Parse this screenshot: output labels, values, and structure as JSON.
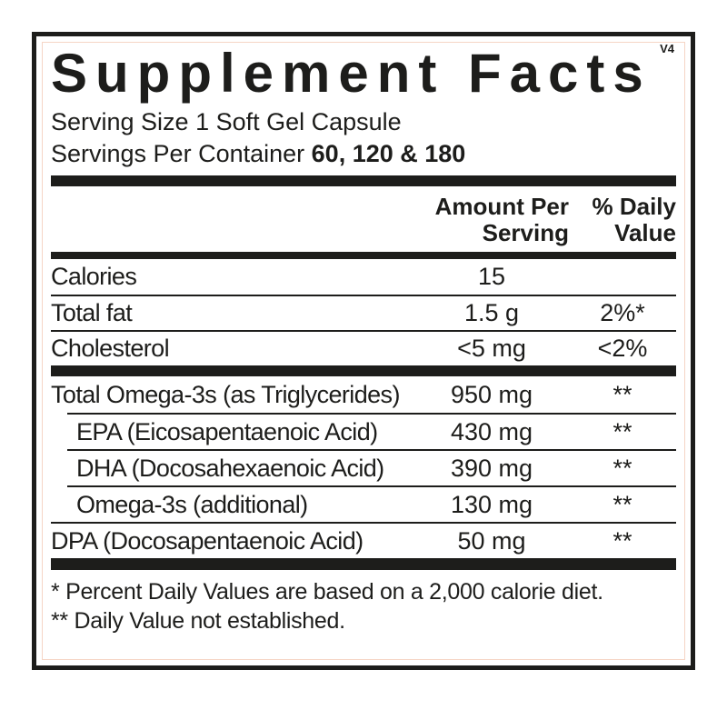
{
  "title": "Supplement Facts",
  "version_tag": "V4",
  "serving": {
    "size_line": "Serving Size 1 Soft Gel Capsule",
    "per_container_label": "Servings Per Container",
    "per_container_value": "60, 120 & 180"
  },
  "columns": {
    "amount_header": "Amount Per Serving",
    "dv_header": "% Daily Value"
  },
  "rows": [
    {
      "name": "Calories",
      "amount": "15",
      "dv": ""
    },
    {
      "name": "Total fat",
      "amount": "1.5 g",
      "dv": "2%*"
    },
    {
      "name": "Cholesterol",
      "amount": "<5 mg",
      "dv": "<2%"
    },
    {
      "name": "Total Omega-3s (as Triglycerides)",
      "amount": "950 mg",
      "dv": "**"
    },
    {
      "name": "EPA (Eicosapentaenoic Acid)",
      "amount": "430 mg",
      "dv": "**"
    },
    {
      "name": "DHA (Docosahexaenoic Acid)",
      "amount": "390 mg",
      "dv": "**"
    },
    {
      "name": "Omega-3s (additional)",
      "amount": "130 mg",
      "dv": "**"
    },
    {
      "name": "DPA (Docosapentaenoic Acid)",
      "amount": "50 mg",
      "dv": "**"
    }
  ],
  "footnotes": [
    "* Percent Daily Values are based on a 2,000 calorie diet.",
    "** Daily Value not established."
  ],
  "colors": {
    "ink": "#1d1d1b",
    "accent_line": "#f6d5c5",
    "background": "#ffffff"
  }
}
